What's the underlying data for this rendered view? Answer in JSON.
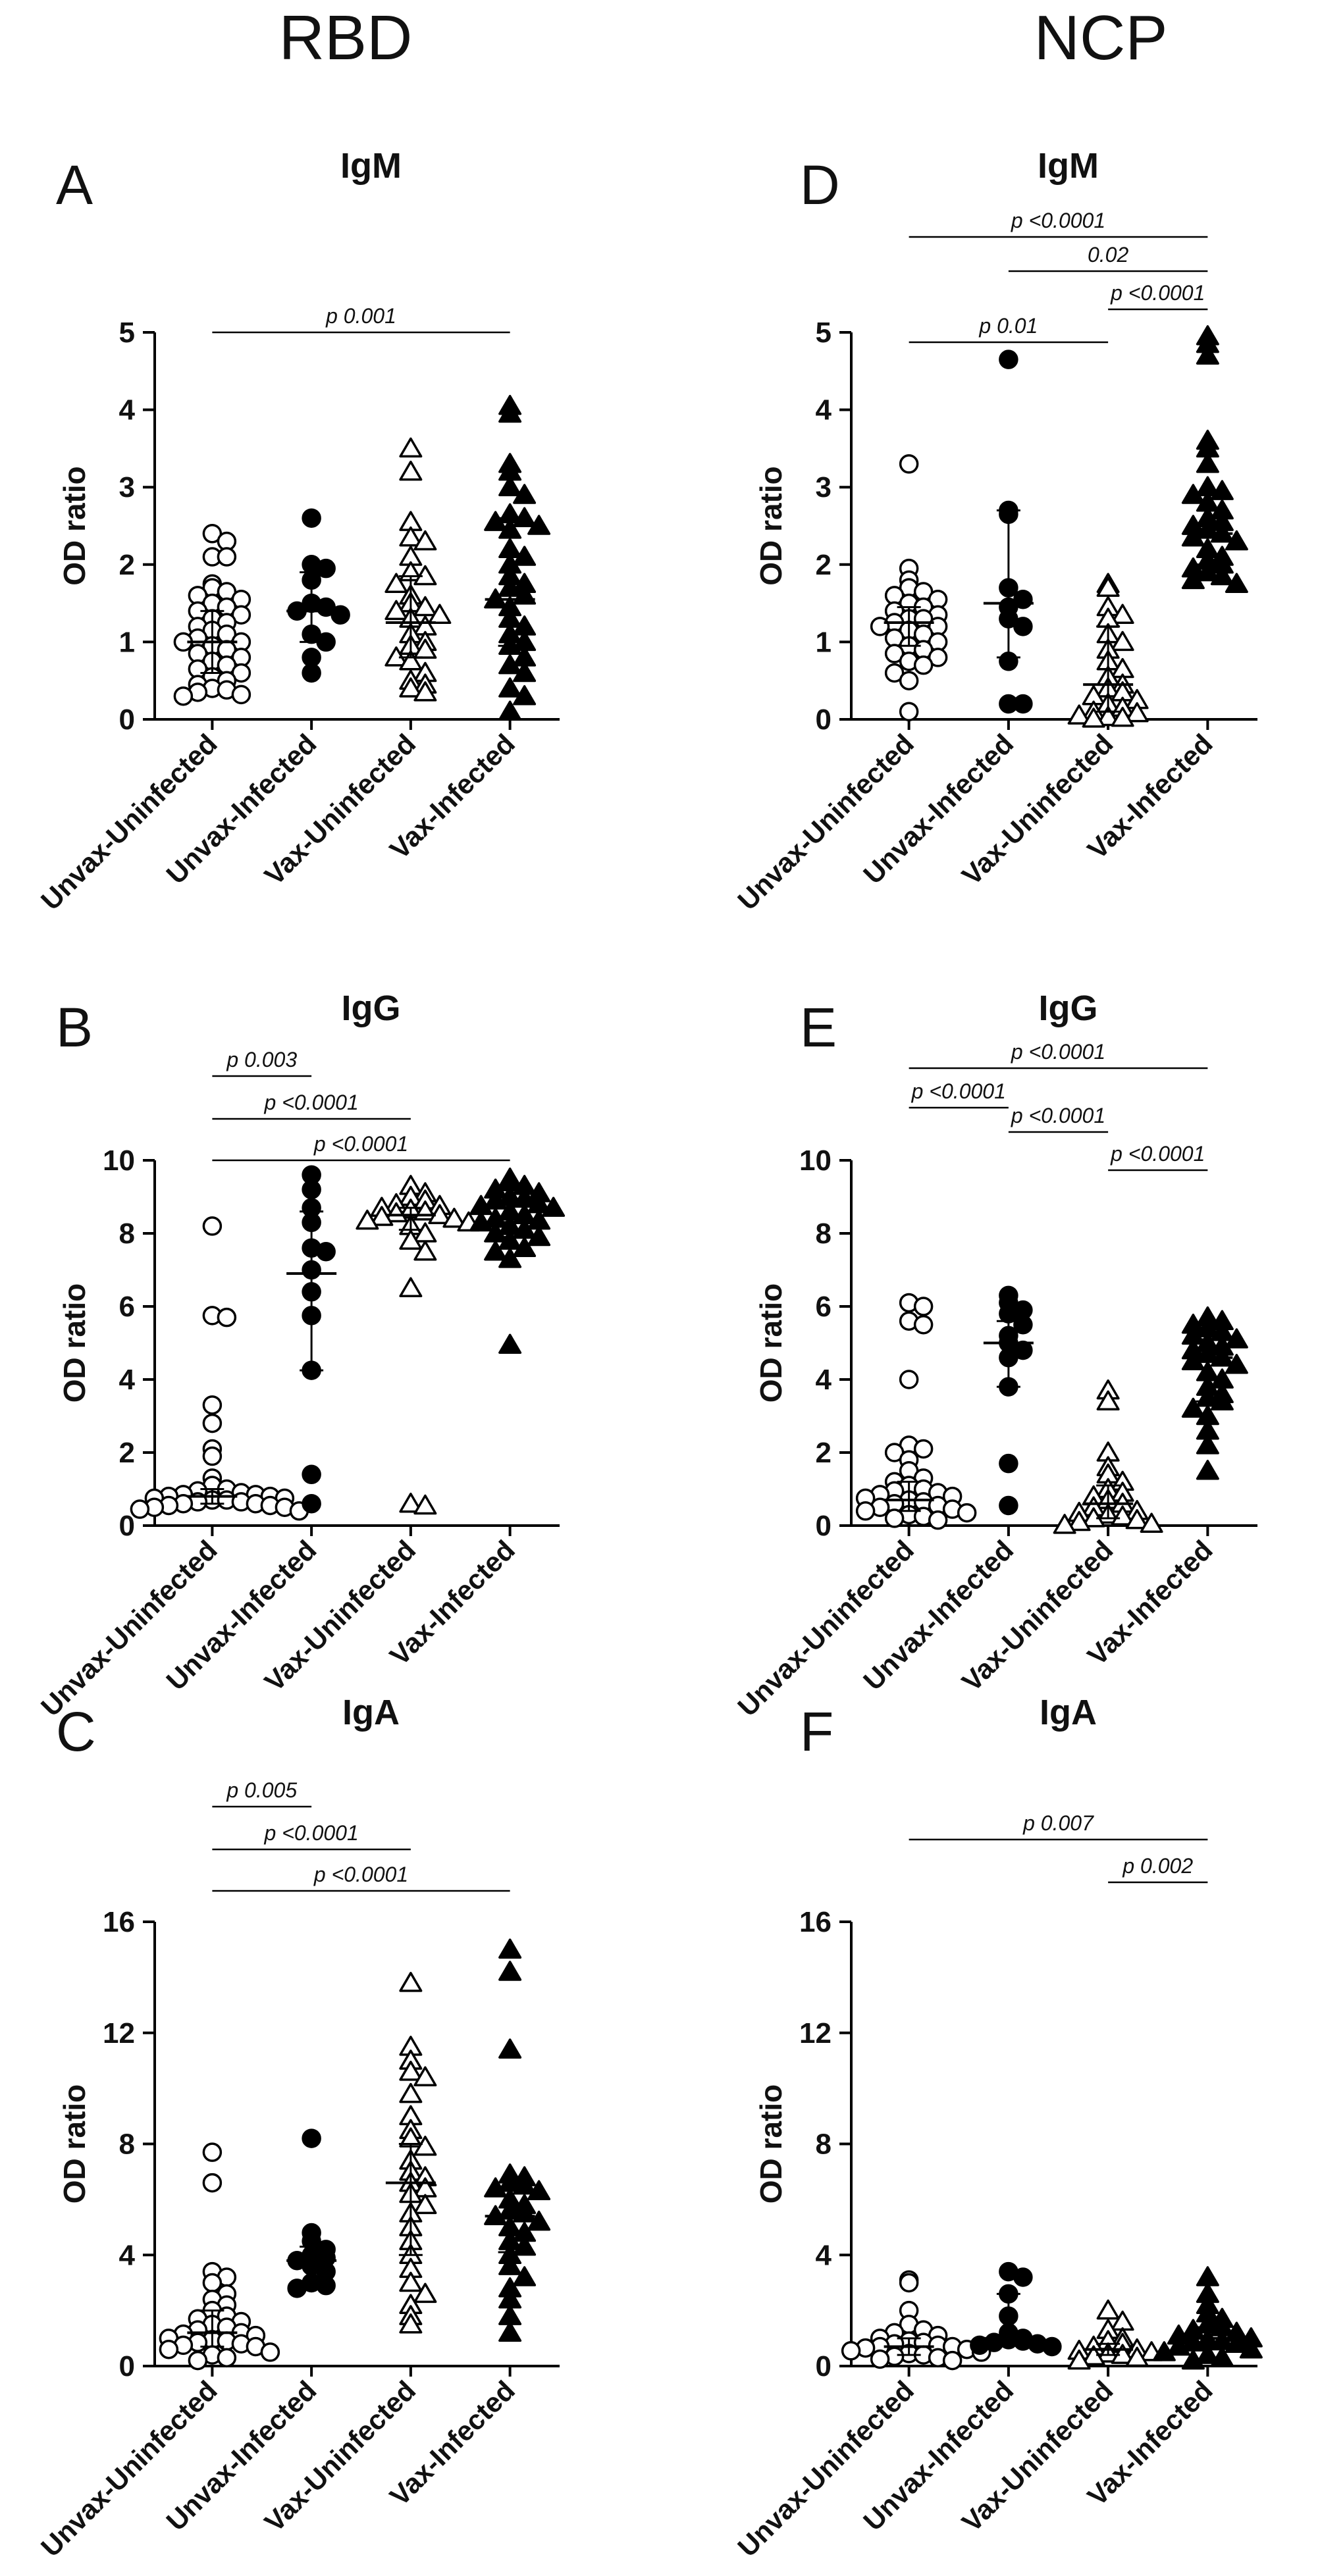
{
  "figure": {
    "col_titles": [
      "RBD",
      "NCP"
    ]
  },
  "chart_data": [
    {
      "type": "scatter",
      "panel": "A",
      "title": "IgM",
      "antigen": "RBD",
      "ylabel": "OD ratio",
      "ylim": [
        0,
        5
      ],
      "yticks": [
        0,
        1,
        2,
        3,
        4,
        5
      ],
      "categories": [
        "Unvax-Uninfected",
        "Unvax-Infected",
        "Vax-Uninfected",
        "Vax-Infected"
      ],
      "markers": [
        "circle-open",
        "circle-filled",
        "triangle-open",
        "triangle-filled"
      ],
      "series": [
        {
          "name": "Unvax-Uninfected",
          "median": 1.0,
          "q1": 0.6,
          "q3": 1.4,
          "values": [
            2.4,
            2.3,
            2.1,
            2.1,
            1.75,
            1.7,
            1.65,
            1.6,
            1.55,
            1.5,
            1.45,
            1.4,
            1.35,
            1.3,
            1.25,
            1.2,
            1.15,
            1.1,
            1.05,
            1.0,
            1.0,
            0.95,
            0.9,
            0.85,
            0.8,
            0.75,
            0.7,
            0.65,
            0.6,
            0.55,
            0.5,
            0.45,
            0.4,
            0.38,
            0.35,
            0.32,
            0.3
          ]
        },
        {
          "name": "Unvax-Infected",
          "median": 1.4,
          "q1": 1.0,
          "q3": 1.9,
          "values": [
            2.6,
            2.0,
            1.95,
            1.8,
            1.5,
            1.45,
            1.4,
            1.35,
            1.1,
            1.0,
            0.8,
            0.6
          ]
        },
        {
          "name": "Vax-Uninfected",
          "median": 1.25,
          "q1": 0.8,
          "q3": 1.85,
          "values": [
            3.5,
            3.2,
            2.55,
            2.35,
            2.3,
            2.1,
            1.9,
            1.85,
            1.75,
            1.6,
            1.5,
            1.45,
            1.4,
            1.35,
            1.3,
            1.2,
            1.1,
            1.0,
            0.95,
            0.9,
            0.8,
            0.75,
            0.6,
            0.5,
            0.45,
            0.4,
            0.35
          ]
        },
        {
          "name": "Vax-Infected",
          "median": 1.55,
          "q1": 0.95,
          "q3": 2.6,
          "values": [
            4.05,
            3.95,
            3.3,
            3.2,
            3.0,
            2.9,
            2.65,
            2.6,
            2.55,
            2.5,
            2.45,
            2.2,
            2.1,
            2.0,
            1.85,
            1.75,
            1.7,
            1.6,
            1.55,
            1.45,
            1.3,
            1.2,
            1.1,
            1.0,
            0.95,
            0.8,
            0.7,
            0.6,
            0.4,
            0.3,
            0.1
          ]
        }
      ],
      "comparisons": [
        {
          "from": "Unvax-Uninfected",
          "to": "Vax-Infected",
          "label": "p 0.001"
        }
      ]
    },
    {
      "type": "scatter",
      "panel": "B",
      "title": "IgG",
      "antigen": "RBD",
      "ylabel": "OD ratio",
      "ylim": [
        0,
        10
      ],
      "yticks": [
        0,
        2,
        4,
        6,
        8,
        10
      ],
      "categories": [
        "Unvax-Uninfected",
        "Unvax-Infected",
        "Vax-Uninfected",
        "Vax-Infected"
      ],
      "markers": [
        "circle-open",
        "circle-filled",
        "triangle-open",
        "triangle-filled"
      ],
      "series": [
        {
          "name": "Unvax-Uninfected",
          "median": 0.8,
          "q1": 0.6,
          "q3": 1.0,
          "values": [
            8.2,
            5.75,
            5.7,
            3.3,
            2.8,
            2.1,
            1.9,
            1.3,
            1.1,
            1.0,
            0.95,
            0.9,
            0.85,
            0.85,
            0.8,
            0.8,
            0.75,
            0.75,
            0.7,
            0.7,
            0.65,
            0.65,
            0.6,
            0.6,
            0.55,
            0.55,
            0.5,
            0.5,
            0.45,
            0.4
          ]
        },
        {
          "name": "Unvax-Infected",
          "median": 6.9,
          "q1": 4.25,
          "q3": 8.6,
          "values": [
            9.6,
            9.2,
            8.7,
            8.3,
            7.6,
            7.5,
            7.0,
            6.4,
            5.75,
            4.25,
            1.4,
            0.6
          ]
        },
        {
          "name": "Vax-Uninfected",
          "median": 8.5,
          "q1": 8.1,
          "q3": 8.7,
          "values": [
            9.3,
            9.1,
            9.0,
            8.9,
            8.8,
            8.75,
            8.7,
            8.65,
            8.6,
            8.55,
            8.5,
            8.45,
            8.4,
            8.35,
            8.3,
            8.2,
            8.0,
            7.8,
            7.5,
            6.5,
            0.6,
            0.55
          ]
        },
        {
          "name": "Vax-Infected",
          "median": 8.3,
          "q1": 7.9,
          "q3": 8.8,
          "values": [
            9.5,
            9.4,
            9.3,
            9.2,
            9.1,
            9.0,
            8.95,
            8.9,
            8.8,
            8.75,
            8.7,
            8.6,
            8.5,
            8.4,
            8.35,
            8.3,
            8.2,
            8.1,
            8.0,
            7.9,
            7.8,
            7.6,
            7.5,
            7.3,
            4.95
          ]
        }
      ],
      "comparisons": [
        {
          "from": "Unvax-Uninfected",
          "to": "Unvax-Infected",
          "label": "p 0.003"
        },
        {
          "from": "Unvax-Uninfected",
          "to": "Vax-Uninfected",
          "label": "p <0.0001"
        },
        {
          "from": "Unvax-Uninfected",
          "to": "Vax-Infected",
          "label": "p <0.0001"
        }
      ]
    },
    {
      "type": "scatter",
      "panel": "C",
      "title": "IgA",
      "antigen": "RBD",
      "ylabel": "OD ratio",
      "ylim": [
        0,
        16
      ],
      "yticks": [
        0,
        4,
        8,
        12,
        16
      ],
      "categories": [
        "Unvax-Uninfected",
        "Unvax-Infected",
        "Vax-Uninfected",
        "Vax-Infected"
      ],
      "markers": [
        "circle-open",
        "circle-filled",
        "triangle-open",
        "triangle-filled"
      ],
      "series": [
        {
          "name": "Unvax-Uninfected",
          "median": 1.2,
          "q1": 0.7,
          "q3": 2.0,
          "values": [
            7.7,
            6.6,
            3.4,
            3.2,
            3.0,
            2.6,
            2.4,
            2.2,
            2.0,
            1.8,
            1.7,
            1.6,
            1.5,
            1.4,
            1.3,
            1.2,
            1.15,
            1.1,
            1.0,
            0.95,
            0.9,
            0.85,
            0.8,
            0.75,
            0.7,
            0.6,
            0.5,
            0.4,
            0.3,
            0.2
          ]
        },
        {
          "name": "Unvax-Infected",
          "median": 3.8,
          "q1": 3.0,
          "q3": 4.3,
          "values": [
            8.2,
            4.8,
            4.5,
            4.2,
            4.0,
            3.9,
            3.8,
            3.6,
            3.4,
            3.0,
            2.9,
            2.8
          ]
        },
        {
          "name": "Vax-Uninfected",
          "median": 6.6,
          "q1": 4.0,
          "q3": 8.0,
          "values": [
            13.8,
            11.5,
            11.0,
            10.6,
            10.4,
            9.8,
            9.0,
            8.5,
            8.2,
            7.9,
            7.4,
            7.0,
            6.8,
            6.6,
            6.4,
            6.2,
            5.8,
            5.5,
            5.0,
            4.5,
            4.0,
            3.5,
            3.0,
            2.6,
            2.2,
            1.8,
            1.5
          ]
        },
        {
          "name": "Vax-Infected",
          "median": 5.4,
          "q1": 4.1,
          "q3": 6.4,
          "values": [
            15.0,
            14.2,
            11.4,
            6.9,
            6.8,
            6.6,
            6.5,
            6.4,
            6.3,
            6.0,
            5.8,
            5.6,
            5.5,
            5.4,
            5.2,
            5.0,
            4.8,
            4.5,
            4.3,
            4.0,
            3.6,
            3.2,
            2.8,
            2.4,
            1.8,
            1.2
          ]
        }
      ],
      "comparisons": [
        {
          "from": "Unvax-Uninfected",
          "to": "Unvax-Infected",
          "label": "p 0.005"
        },
        {
          "from": "Unvax-Uninfected",
          "to": "Vax-Uninfected",
          "label": "p <0.0001"
        },
        {
          "from": "Unvax-Uninfected",
          "to": "Vax-Infected",
          "label": "p <0.0001"
        }
      ]
    },
    {
      "type": "scatter",
      "panel": "D",
      "title": "IgM",
      "antigen": "NCP",
      "ylabel": "OD ratio",
      "ylim": [
        0,
        5
      ],
      "yticks": [
        0,
        1,
        2,
        3,
        4,
        5
      ],
      "categories": [
        "Unvax-Uninfected",
        "Unvax-Infected",
        "Vax-Uninfected",
        "Vax-Infected"
      ],
      "markers": [
        "circle-open",
        "circle-filled",
        "triangle-open",
        "triangle-filled"
      ],
      "series": [
        {
          "name": "Unvax-Uninfected",
          "median": 1.25,
          "q1": 0.95,
          "q3": 1.45,
          "values": [
            3.3,
            1.95,
            1.8,
            1.7,
            1.65,
            1.6,
            1.55,
            1.5,
            1.45,
            1.4,
            1.35,
            1.3,
            1.3,
            1.25,
            1.2,
            1.2,
            1.15,
            1.1,
            1.05,
            1.0,
            0.95,
            0.9,
            0.85,
            0.8,
            0.75,
            0.7,
            0.6,
            0.5,
            0.1
          ]
        },
        {
          "name": "Unvax-Infected",
          "median": 1.5,
          "q1": 0.8,
          "q3": 2.7,
          "values": [
            4.65,
            2.7,
            2.65,
            1.7,
            1.55,
            1.45,
            1.3,
            1.2,
            0.75,
            0.2,
            0.2
          ]
        },
        {
          "name": "Vax-Uninfected",
          "median": 0.45,
          "q1": 0.1,
          "q3": 1.2,
          "values": [
            1.75,
            1.7,
            1.45,
            1.35,
            1.3,
            1.1,
            1.0,
            0.9,
            0.75,
            0.65,
            0.55,
            0.45,
            0.4,
            0.35,
            0.3,
            0.25,
            0.2,
            0.15,
            0.1,
            0.08,
            0.05,
            0.03,
            0.02,
            0.01
          ]
        },
        {
          "name": "Vax-Infected",
          "median": 2.4,
          "q1": 2.0,
          "q3": 2.9,
          "values": [
            4.95,
            4.85,
            4.7,
            3.6,
            3.5,
            3.3,
            3.0,
            2.95,
            2.9,
            2.8,
            2.7,
            2.6,
            2.55,
            2.5,
            2.45,
            2.4,
            2.35,
            2.3,
            2.2,
            2.1,
            2.05,
            2.0,
            1.95,
            1.9,
            1.85,
            1.8,
            1.75
          ]
        }
      ],
      "comparisons": [
        {
          "from": "Unvax-Uninfected",
          "to": "Vax-Infected",
          "label": "p <0.0001"
        },
        {
          "from": "Unvax-Infected",
          "to": "Vax-Infected",
          "label": "0.02"
        },
        {
          "from": "Vax-Uninfected",
          "to": "Vax-Infected",
          "label": "p <0.0001"
        },
        {
          "from": "Unvax-Uninfected",
          "to": "Vax-Uninfected",
          "label": "p 0.01"
        }
      ]
    },
    {
      "type": "scatter",
      "panel": "E",
      "title": "IgG",
      "antigen": "NCP",
      "ylabel": "OD ratio",
      "ylim": [
        0,
        10
      ],
      "yticks": [
        0,
        2,
        4,
        6,
        8,
        10
      ],
      "categories": [
        "Unvax-Uninfected",
        "Unvax-Infected",
        "Vax-Uninfected",
        "Vax-Infected"
      ],
      "markers": [
        "circle-open",
        "circle-filled",
        "triangle-open",
        "triangle-filled"
      ],
      "series": [
        {
          "name": "Unvax-Uninfected",
          "median": 0.7,
          "q1": 0.4,
          "q3": 1.2,
          "values": [
            6.1,
            6.0,
            5.6,
            5.5,
            4.0,
            2.2,
            2.1,
            2.0,
            1.8,
            1.5,
            1.3,
            1.2,
            1.1,
            1.0,
            0.95,
            0.9,
            0.85,
            0.8,
            0.75,
            0.7,
            0.65,
            0.6,
            0.55,
            0.5,
            0.45,
            0.4,
            0.35,
            0.3,
            0.25,
            0.2,
            0.15
          ]
        },
        {
          "name": "Unvax-Infected",
          "median": 5.0,
          "q1": 3.8,
          "q3": 5.6,
          "values": [
            6.3,
            6.1,
            5.9,
            5.8,
            5.5,
            5.2,
            5.0,
            4.8,
            4.6,
            3.8,
            1.7,
            0.55
          ]
        },
        {
          "name": "Vax-Uninfected",
          "median": 0.6,
          "q1": 0.2,
          "q3": 1.1,
          "values": [
            3.7,
            3.4,
            2.0,
            1.6,
            1.4,
            1.2,
            1.0,
            0.9,
            0.8,
            0.7,
            0.6,
            0.5,
            0.4,
            0.35,
            0.3,
            0.25,
            0.2,
            0.15,
            0.1,
            0.05,
            0.02
          ]
        },
        {
          "name": "Vax-Infected",
          "median": 4.6,
          "q1": 3.4,
          "q3": 5.1,
          "values": [
            5.7,
            5.6,
            5.5,
            5.4,
            5.3,
            5.2,
            5.1,
            5.0,
            4.9,
            4.8,
            4.7,
            4.6,
            4.5,
            4.4,
            4.2,
            4.0,
            3.8,
            3.6,
            3.5,
            3.4,
            3.2,
            3.0,
            2.6,
            2.2,
            1.5
          ]
        }
      ],
      "comparisons": [
        {
          "from": "Unvax-Uninfected",
          "to": "Vax-Infected",
          "label": "p <0.0001"
        },
        {
          "from": "Unvax-Uninfected",
          "to": "Unvax-Infected",
          "label": "p <0.0001"
        },
        {
          "from": "Unvax-Infected",
          "to": "Vax-Uninfected",
          "label": "p <0.0001"
        },
        {
          "from": "Vax-Uninfected",
          "to": "Vax-Infected",
          "label": "p <0.0001"
        }
      ]
    },
    {
      "type": "scatter",
      "panel": "F",
      "title": "IgA",
      "antigen": "NCP",
      "ylabel": "OD ratio",
      "ylim": [
        0,
        16
      ],
      "yticks": [
        0,
        4,
        8,
        12,
        16
      ],
      "categories": [
        "Unvax-Uninfected",
        "Unvax-Infected",
        "Vax-Uninfected",
        "Vax-Infected"
      ],
      "markers": [
        "circle-open",
        "circle-filled",
        "triangle-open",
        "triangle-filled"
      ],
      "series": [
        {
          "name": "Unvax-Uninfected",
          "median": 0.7,
          "q1": 0.4,
          "q3": 1.0,
          "values": [
            3.1,
            3.0,
            2.0,
            1.5,
            1.3,
            1.2,
            1.1,
            1.0,
            0.9,
            0.85,
            0.8,
            0.75,
            0.7,
            0.7,
            0.65,
            0.6,
            0.55,
            0.5,
            0.45,
            0.4,
            0.35,
            0.3,
            0.25,
            0.2
          ]
        },
        {
          "name": "Unvax-Infected",
          "median": 1.0,
          "q1": 0.8,
          "q3": 2.6,
          "values": [
            3.4,
            3.2,
            2.6,
            1.8,
            1.2,
            1.0,
            0.95,
            0.9,
            0.85,
            0.8,
            0.75,
            0.7
          ]
        },
        {
          "name": "Vax-Uninfected",
          "median": 0.6,
          "q1": 0.4,
          "q3": 0.8,
          "values": [
            2.0,
            1.6,
            1.3,
            1.0,
            0.9,
            0.8,
            0.7,
            0.6,
            0.55,
            0.5,
            0.45,
            0.4,
            0.35,
            0.3,
            0.2
          ]
        },
        {
          "name": "Vax-Infected",
          "median": 1.0,
          "q1": 0.6,
          "q3": 1.4,
          "values": [
            3.2,
            2.6,
            2.2,
            1.9,
            1.7,
            1.5,
            1.4,
            1.3,
            1.2,
            1.1,
            1.0,
            0.95,
            0.9,
            0.85,
            0.8,
            0.7,
            0.6,
            0.5,
            0.4,
            0.3,
            0.2
          ]
        }
      ],
      "comparisons": [
        {
          "from": "Unvax-Uninfected",
          "to": "Vax-Infected",
          "label": "p 0.007"
        },
        {
          "from": "Vax-Uninfected",
          "to": "Vax-Infected",
          "label": "p 0.002"
        }
      ]
    }
  ]
}
